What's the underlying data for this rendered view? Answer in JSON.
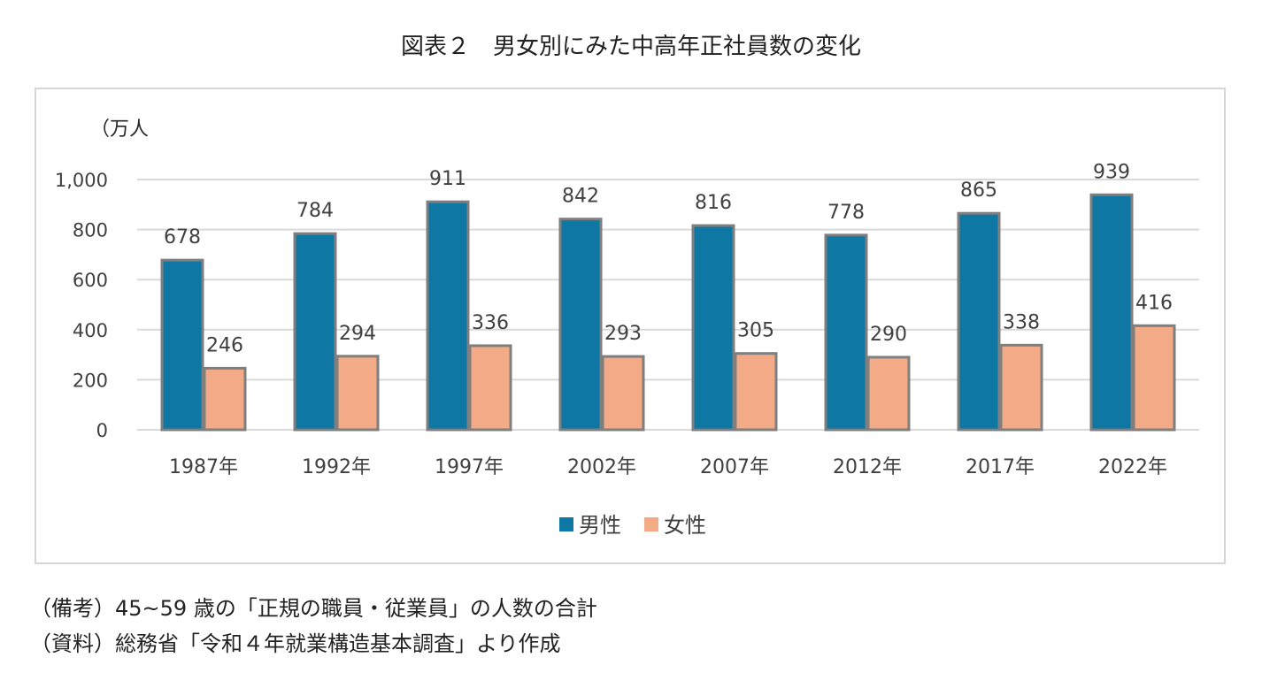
{
  "title": "図表２　男女別にみた中高年正社員数の変化",
  "chart_data": {
    "type": "bar",
    "unit_label": "（万人",
    "categories": [
      "1987年",
      "1992年",
      "1997年",
      "2002年",
      "2007年",
      "2012年",
      "2017年",
      "2022年"
    ],
    "series": [
      {
        "name": "男性",
        "color": "#0e77a3",
        "values": [
          678,
          784,
          911,
          842,
          816,
          778,
          865,
          939
        ]
      },
      {
        "name": "女性",
        "color": "#f2aa87",
        "values": [
          246,
          294,
          336,
          293,
          305,
          290,
          338,
          416
        ]
      }
    ],
    "ylim": [
      0,
      1000
    ],
    "yticks": [
      0,
      200,
      400,
      600,
      800,
      1000
    ],
    "ytick_labels": [
      "0",
      "200",
      "400",
      "600",
      "800",
      "1,000"
    ],
    "grid": true,
    "legend": "bottom",
    "bar_stroke_color": "#7f7f7f"
  },
  "notes": {
    "remark": "（備考）45~59 歳の「正規の職員・従業員」の人数の合計",
    "source": "（資料）総務省「令和４年就業構造基本調査」より作成"
  }
}
